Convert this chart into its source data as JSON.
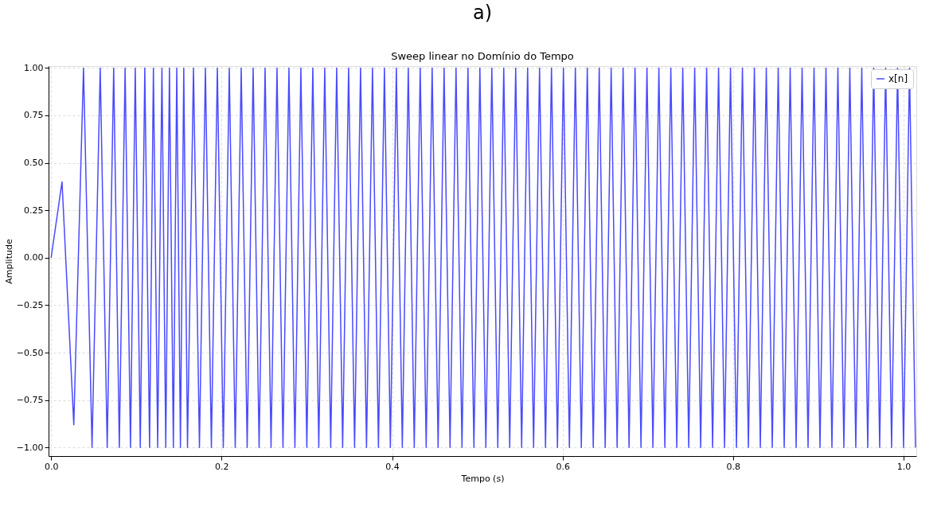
{
  "chart_data": {
    "type": "line",
    "title": "Sweep linear no Domínio do Tempo",
    "xlabel": "Tempo (s)",
    "ylabel": "Amplitude",
    "annotations": [
      "a)"
    ],
    "series": [
      {
        "name": "x[n]",
        "color": "#4a4aff",
        "x": [
          0,
          0.0128,
          0.0266,
          0.038,
          0.048,
          0.0576,
          0.0658,
          0.0734,
          0.08,
          0.0868,
          0.0931,
          0.0987,
          0.1046,
          0.1099,
          0.1155,
          0.12,
          0.125,
          0.13,
          0.1345,
          0.1388,
          0.1434,
          0.1474,
          0.1517,
          0.1556,
          0.16,
          0.167,
          0.174,
          0.181,
          0.188,
          0.195,
          0.202,
          0.209,
          0.216,
          0.223,
          0.23,
          0.237,
          0.244,
          0.251,
          0.258,
          0.265,
          0.272,
          0.279,
          0.286,
          0.293,
          0.3,
          0.307,
          0.314,
          0.321,
          0.328,
          0.335,
          0.342,
          0.349,
          0.356,
          0.363,
          0.37,
          0.377,
          0.384,
          0.391,
          0.398,
          0.405,
          0.412,
          0.419,
          0.426,
          0.433,
          0.44,
          0.447,
          0.454,
          0.461,
          0.468,
          0.475,
          0.482,
          0.489,
          0.496,
          0.503,
          0.51,
          0.517,
          0.524,
          0.531,
          0.538,
          0.545,
          0.552,
          0.559,
          0.566,
          0.573,
          0.58,
          0.587,
          0.594,
          0.601,
          0.608,
          0.615,
          0.622,
          0.629,
          0.636,
          0.643,
          0.65,
          0.657,
          0.664,
          0.671,
          0.678,
          0.685,
          0.692,
          0.699,
          0.706,
          0.713,
          0.72,
          0.727,
          0.734,
          0.741,
          0.748,
          0.755,
          0.762,
          0.769,
          0.776,
          0.783,
          0.79,
          0.797,
          0.804,
          0.811,
          0.818,
          0.825,
          0.832,
          0.839,
          0.846,
          0.853,
          0.86,
          0.867,
          0.874,
          0.881,
          0.888,
          0.895,
          0.902,
          0.909,
          0.916,
          0.923,
          0.93,
          0.937,
          0.944,
          0.951,
          0.958,
          0.965,
          0.972,
          0.979,
          0.986,
          0.993,
          1.0,
          1.007,
          1.014
        ],
        "values": [
          0,
          0.4,
          -0.88,
          1,
          -1,
          1,
          -1,
          1,
          -1,
          1,
          -1,
          1,
          -1,
          1,
          -1,
          1,
          -1,
          1,
          -1,
          1,
          -1,
          1,
          -1,
          1,
          -1,
          1,
          -1,
          1,
          -1,
          1,
          -1,
          1,
          -1,
          1,
          -1,
          1,
          -1,
          1,
          -1,
          1,
          -1,
          1,
          -1,
          1,
          -1,
          1,
          -1,
          1,
          -1,
          1,
          -1,
          1,
          -1,
          1,
          -1,
          1,
          -1,
          1,
          -1,
          1,
          -1,
          1,
          -1,
          1,
          -1,
          1,
          -1,
          1,
          -1,
          1,
          -1,
          1,
          -1,
          1,
          -1,
          1,
          -1,
          1,
          -1,
          1,
          -1,
          1,
          -1,
          1,
          -1,
          1,
          -1,
          1,
          -1,
          1,
          -1,
          1,
          -1,
          1,
          -1,
          1,
          -1,
          1,
          -1,
          1,
          -1,
          1,
          -1,
          1,
          -1,
          1,
          -1,
          1,
          -1,
          1,
          -1,
          1,
          -1,
          1,
          -1,
          1,
          -1,
          1,
          -1,
          1,
          -1,
          1,
          -1,
          1,
          -1,
          1,
          -1,
          1,
          -1,
          1,
          -1,
          1,
          -1,
          1,
          -1,
          1,
          -1,
          1,
          -1,
          1,
          -1,
          1,
          -1,
          1,
          -1,
          1,
          -1
        ]
      }
    ],
    "xlim": [
      -0.003,
      1.015
    ],
    "ylim": [
      -1.045,
      1.01
    ],
    "xticks": [
      {
        "value": 0,
        "label": "0.0"
      },
      0.2,
      0.4,
      0.6,
      0.8,
      {
        "value": 1,
        "label": "1.0"
      }
    ],
    "yticks": [
      {
        "value": -1,
        "label": "−1.00"
      },
      {
        "value": -0.75,
        "label": "−0.75"
      },
      {
        "value": -0.5,
        "label": "−0.50"
      },
      {
        "value": -0.25,
        "label": "−0.25"
      },
      {
        "value": 0,
        "label": "0.00"
      },
      0.25,
      {
        "value": 0.5,
        "label": "0.50"
      },
      0.75,
      {
        "value": 1,
        "label": "1.00"
      }
    ],
    "grid": true,
    "legend": "top right",
    "marker": "none",
    "line_style": "solid"
  }
}
